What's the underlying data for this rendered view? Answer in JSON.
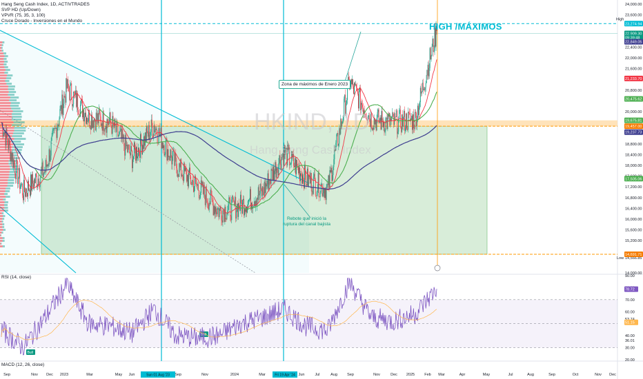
{
  "legend": {
    "title": "Hang Seng Cash Index, 1D, ACTIVTRADES",
    "line2": "SVP HD (Up/Down)",
    "line3": "VPVR (75, 35, 3, 100)",
    "line4": "Cruce Dorado - Inversiones en el Mundo",
    "rsi_label": "RSI (14, close)",
    "macd_label": "MACD (12, 26, close)"
  },
  "watermark": {
    "symbol": "HKIND, 1D",
    "name": "Hang Seng Cash Index"
  },
  "annotations": {
    "high_text": "HIGH /MÁXIMOS",
    "callout_jan": "Zona de máximos de Enero 2023",
    "callout_rebote_1": "Rebote que inició la",
    "callout_rebote_2": "ruptura del canal bajista",
    "high_tag": "High",
    "low_tag": "Low"
  },
  "colors": {
    "price": "#26a69a",
    "candle_up": "#089981",
    "candle_down": "#f23645",
    "ma_fast": "#f23645",
    "ma_mid": "#4caf50",
    "ma_slow": "#3d3d8f",
    "channel": "#00bcd4",
    "zone": "#4caf50",
    "orange": "#ff9800",
    "rsi": "#7e57c2"
  },
  "chart_data": [
    {
      "type": "line",
      "title": "Hang Seng Cash Index, 1D, ACTIVTRADES",
      "x": [
        "Sep",
        "Nov",
        "Dec",
        "2023",
        "Mar",
        "May",
        "Jun",
        "Jul",
        "Sep",
        "Nov",
        "2024",
        "Mar",
        "Apr",
        "Jun",
        "Jul",
        "Aug",
        "Sep",
        "Nov",
        "Dec",
        "2025",
        "Feb"
      ],
      "series": [
        {
          "name": "Hang Seng Cash Index",
          "values": [
            19600,
            17000,
            17800,
            20900,
            19800,
            19600,
            18300,
            19500,
            18000,
            17200,
            16300,
            16500,
            17000,
            18500,
            17500,
            17100,
            21100,
            19700,
            19600,
            19700,
            23000
          ]
        }
      ],
      "ylim": [
        14000,
        24000
      ],
      "y_ticks": [
        "24,000.00",
        "23,600.00",
        "23,274.94",
        "22,909.30",
        "22,849.05",
        "22,400.00",
        "22,000.00",
        "21,600.00",
        "21,233.70",
        "20,800.00",
        "20,475.62",
        "20,000.00",
        "19,675.81",
        "19,457.00",
        "19,237.73",
        "18,800.00",
        "18,400.00",
        "18,000.00",
        "17,600.00",
        "17,505.06",
        "17,200.00",
        "16,800.00",
        "16,400.00",
        "16,000.00",
        "15,600.00",
        "15,200.00",
        "14,691.71",
        "14,566.85",
        "14,000.00"
      ],
      "price_tags": [
        {
          "label": "23,274.94",
          "value": 23274.94,
          "color": "#00bcd4"
        },
        {
          "label": "22,909.30",
          "value": 22909.3,
          "color": "#089981"
        },
        {
          "label": "09:39:48",
          "value": 22760,
          "color": "#089981"
        },
        {
          "label": "22,849.05",
          "value": 22600,
          "color": "#3d3d8f"
        },
        {
          "label": "21,233.70",
          "value": 21233.7,
          "color": "#f23645"
        },
        {
          "label": "20,475.62",
          "value": 20475.62,
          "color": "#4caf50"
        },
        {
          "label": "19,675.81",
          "value": 19675.81,
          "color": "#4caf50"
        },
        {
          "label": "19,457.00",
          "value": 19457,
          "color": "#f57c00"
        },
        {
          "label": "19,237.73",
          "value": 19237.73,
          "color": "#3d3d8f"
        },
        {
          "label": "17,505.06",
          "value": 17505.06,
          "color": "#4caf50"
        },
        {
          "label": "14,691.71",
          "value": 14691.71,
          "color": "#f57c00"
        }
      ],
      "levels": {
        "high": 23274.94,
        "low": 14566.85,
        "resistance": 19457,
        "support": 14691.71
      }
    },
    {
      "type": "line",
      "title": "RSI (14, close)",
      "ylim": [
        20,
        90
      ],
      "y_ticks": [
        "90.00",
        "80.00",
        "70.00",
        "60.00",
        "53.74",
        "50.00",
        "40.00",
        "36.01",
        "30.00",
        "20.00"
      ],
      "current": "78.72",
      "ma": "51.15",
      "series": [
        {
          "name": "RSI",
          "values": [
            45,
            30,
            55,
            83,
            50,
            48,
            42,
            62,
            40,
            38,
            40,
            50,
            55,
            62,
            48,
            44,
            85,
            55,
            52,
            58,
            79
          ]
        }
      ],
      "labels": {
        "bull_1": "Bull",
        "bull_2": "Bull"
      }
    }
  ],
  "xaxis": {
    "labels": [
      "Sep",
      "Nov",
      "Dec",
      "2023",
      "Mar",
      "May",
      "Jun",
      "Jul",
      "Sep",
      "Nov",
      "2024",
      "Mar",
      "Apr",
      "Jun",
      "Jul",
      "Aug",
      "Sep",
      "Nov",
      "Dec",
      "2025",
      "Feb",
      "Mar",
      "Apr",
      "May",
      "Jul",
      "Aug",
      "Sep",
      "Oct",
      "Nov",
      "Dec"
    ],
    "highlight_1": "Sun 01 Aug '23",
    "highlight_2": "Fri 19 Apr '24"
  }
}
